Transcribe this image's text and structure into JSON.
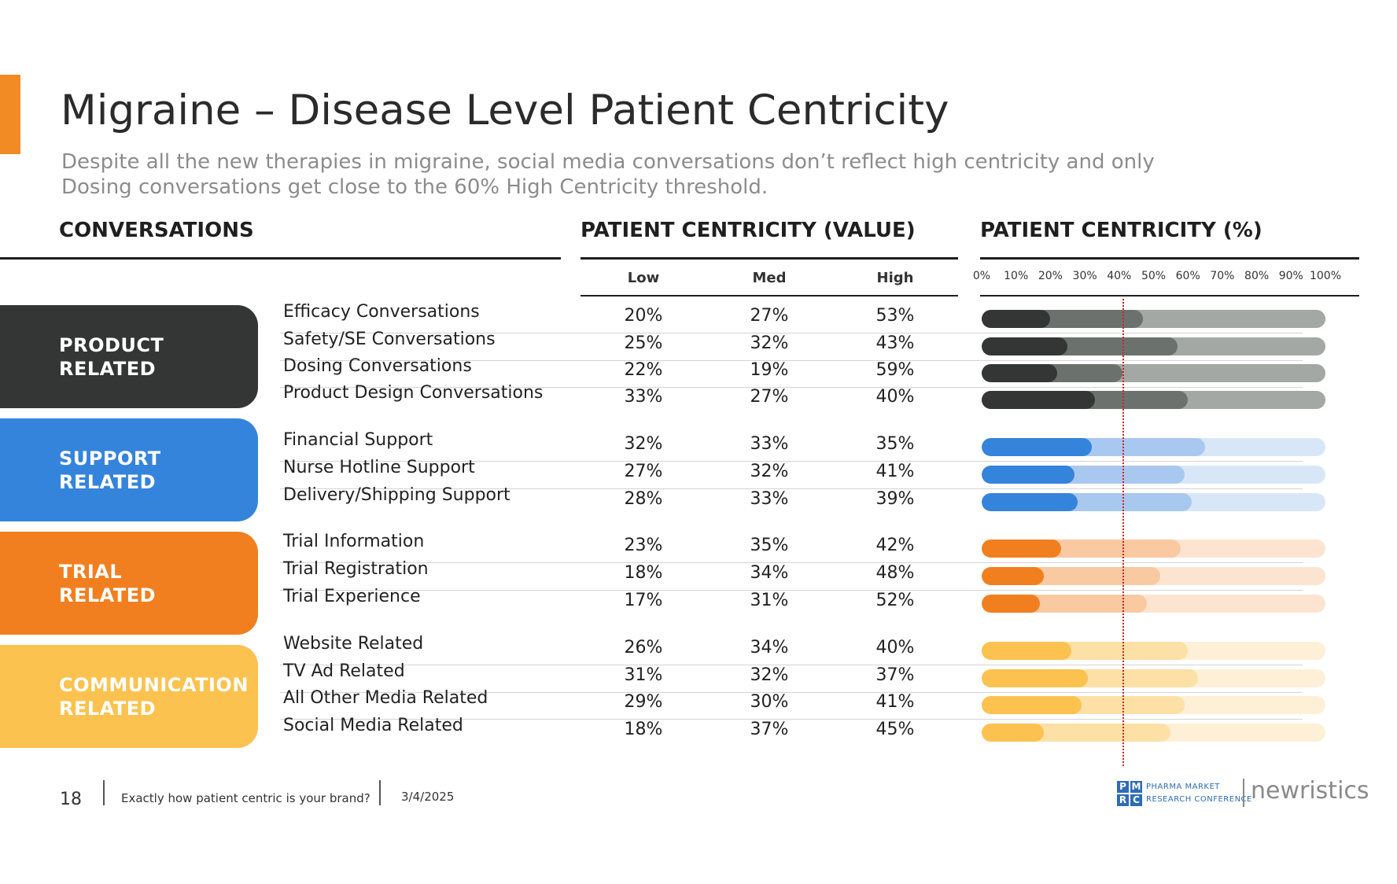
{
  "title": "Migraine – Disease Level Patient Centricity",
  "subtitle": "Despite all the new therapies in migraine, social media conversations don’t reflect high centricity and only Dosing conversations get close to the 60% High Centricity threshold.",
  "headers": {
    "conversations": "CONVERSATIONS",
    "value": "PATIENT CENTRICITY (VALUE)",
    "percent": "PATIENT CENTRICITY (%)",
    "low": "Low",
    "med": "Med",
    "high": "High"
  },
  "chart_data": {
    "type": "bar",
    "stacked": true,
    "orientation": "horizontal",
    "title": "Migraine – Disease Level Patient Centricity",
    "xaxis": {
      "range": [
        0,
        100
      ],
      "unit": "%",
      "tick_labels": [
        "0%",
        "10%",
        "20%",
        "30%",
        "40%",
        "50%",
        "60%",
        "70%",
        "80%",
        "90%",
        "100%"
      ]
    },
    "segments": [
      "Low",
      "Med",
      "High"
    ],
    "threshold": {
      "value": 41,
      "style": "red dotted line"
    },
    "groups": [
      {
        "name": "PRODUCT\nRELATED",
        "colors": [
          "#333634",
          "#6b726e",
          "#a3a8a4"
        ],
        "rows": [
          {
            "label": "Efficacy Conversations",
            "low": 20,
            "med": 27,
            "high": 53
          },
          {
            "label": "Safety/SE Conversations",
            "low": 25,
            "med": 32,
            "high": 43
          },
          {
            "label": "Dosing Conversations",
            "low": 22,
            "med": 19,
            "high": 59
          },
          {
            "label": "Product Design Conversations",
            "low": 33,
            "med": 27,
            "high": 40
          }
        ]
      },
      {
        "name": "SUPPORT\nRELATED",
        "colors": [
          "#3584dc",
          "#a9c8ef",
          "#d8e7f8"
        ],
        "rows": [
          {
            "label": "Financial Support",
            "low": 32,
            "med": 33,
            "high": 35
          },
          {
            "label": "Nurse Hotline Support",
            "low": 27,
            "med": 32,
            "high": 41
          },
          {
            "label": "Delivery/Shipping Support",
            "low": 28,
            "med": 33,
            "high": 39
          }
        ]
      },
      {
        "name": "TRIAL\nRELATED",
        "colors": [
          "#f27f1f",
          "#f9c9a1",
          "#fde4d1"
        ],
        "rows": [
          {
            "label": "Trial Information",
            "low": 23,
            "med": 35,
            "high": 42
          },
          {
            "label": "Trial Registration",
            "low": 18,
            "med": 34,
            "high": 48
          },
          {
            "label": "Trial Experience",
            "low": 17,
            "med": 31,
            "high": 52
          }
        ]
      },
      {
        "name": "COMMUNICATION\nRELATED",
        "colors": [
          "#fcc24f",
          "#fde0a6",
          "#fef0d6"
        ],
        "rows": [
          {
            "label": "Website Related",
            "low": 26,
            "med": 34,
            "high": 40
          },
          {
            "label": "TV Ad Related",
            "low": 31,
            "med": 32,
            "high": 37
          },
          {
            "label": "All Other Media Related",
            "low": 29,
            "med": 30,
            "high": 41
          },
          {
            "label": "Social Media Related",
            "low": 18,
            "med": 37,
            "high": 45
          }
        ]
      }
    ]
  },
  "footer": {
    "page": "18",
    "tagline": "Exactly how patient centric is your brand?",
    "date": "3/4/2025",
    "pmrc_letters": [
      "P",
      "M",
      "R",
      "C"
    ],
    "pmrc_line1": "PHARMA MARKET",
    "pmrc_line2": "RESEARCH CONFERENCE",
    "brand": "newristics"
  }
}
